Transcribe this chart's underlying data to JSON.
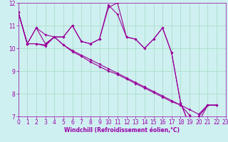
{
  "xlabel": "Windchill (Refroidissement éolien,°C)",
  "bg_color": "#cff0f0",
  "line_color": "#990099",
  "grid_color": "#aaddcc",
  "tick_color": "#9900aa",
  "label_color": "#9900aa",
  "line1": [
    11.6,
    10.2,
    10.9,
    10.2,
    10.5,
    10.5,
    11.0,
    10.3,
    10.2,
    10.4,
    11.8,
    12.0,
    10.5,
    10.4,
    10.0,
    10.4,
    10.9,
    9.8,
    7.6,
    6.6,
    7.0,
    7.5,
    7.5
  ],
  "line2": [
    11.6,
    10.2,
    10.2,
    10.15,
    10.5,
    10.15,
    9.9,
    9.7,
    9.5,
    9.3,
    9.1,
    8.9,
    8.7,
    8.5,
    8.3,
    8.1,
    7.9,
    7.7,
    7.5,
    7.3,
    7.1,
    7.5,
    7.5
  ],
  "line3": [
    11.6,
    10.2,
    10.2,
    10.1,
    10.5,
    10.15,
    9.85,
    9.65,
    9.4,
    9.2,
    9.0,
    8.85,
    8.65,
    8.45,
    8.25,
    8.05,
    7.85,
    7.65,
    7.5,
    7.05,
    6.75,
    7.5,
    7.5
  ],
  "line4": [
    11.6,
    10.2,
    10.9,
    10.6,
    10.5,
    10.5,
    11.0,
    10.3,
    10.2,
    10.4,
    11.9,
    11.5,
    10.5,
    10.4,
    10.0,
    10.4,
    10.9,
    9.8,
    7.6,
    6.6,
    7.0,
    7.5
  ],
  "ylim": [
    7,
    12
  ],
  "xlim": [
    0,
    23
  ],
  "yticks": [
    7,
    8,
    9,
    10,
    11,
    12
  ],
  "xticks": [
    0,
    1,
    2,
    3,
    4,
    5,
    6,
    7,
    8,
    9,
    10,
    11,
    12,
    13,
    14,
    15,
    16,
    17,
    18,
    19,
    20,
    21,
    22,
    23
  ],
  "tick_fontsize": 5.5,
  "xlabel_fontsize": 5.5
}
